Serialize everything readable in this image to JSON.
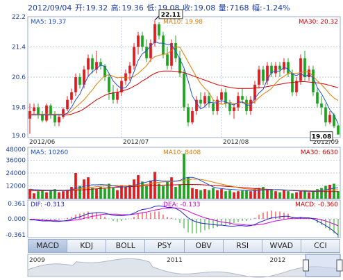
{
  "header": {
    "date": "2012/09/04",
    "open_label": "开:",
    "open": "19.32",
    "high_label": "高:",
    "high": "19.36",
    "low_label": "低:",
    "low": "19.08",
    "close_label": "收:",
    "close": "19.08",
    "volume_label": "量:",
    "volume": "7168",
    "change_label": "幅:",
    "change": "-1.24%"
  },
  "colors": {
    "up": "#e41a1c",
    "down": "#1ea51e",
    "ma5": "#1f4fd1",
    "ma10": "#e07b00",
    "ma30": "#d40000",
    "dif": "#1f1fd1",
    "dea": "#d400d4",
    "axis": "#1a3aa8",
    "grid": "#b9c7e0"
  },
  "tabs": [
    "MACD",
    "KDJ",
    "BOLL",
    "PSY",
    "OBV",
    "RSI",
    "WVAD",
    "CCI"
  ],
  "active_tab": "MACD",
  "overview": {
    "labels": [
      "2009",
      "2011",
      "2012"
    ]
  },
  "chart_data": [
    {
      "type": "candlestick",
      "title": "",
      "ylim": [
        19.0,
        22.2
      ],
      "yticks": [
        "22.2",
        "21.4",
        "20.6",
        "19.8",
        "19.0"
      ],
      "xticks": [
        "2012/06",
        "2012/07",
        "2012/08",
        "2012/09"
      ],
      "legend": {
        "ma5": "MA5: 19.37",
        "ma10": "MA10: 19.98",
        "ma30": "MA30: 20.32"
      },
      "annotations": {
        "max": "22.11",
        "min": "19.08"
      },
      "grid": true,
      "candles": [
        {
          "o": 19.5,
          "h": 19.9,
          "l": 19.1,
          "c": 19.7
        },
        {
          "o": 19.7,
          "h": 19.9,
          "l": 19.6,
          "c": 19.8
        },
        {
          "o": 19.8,
          "h": 19.9,
          "l": 19.5,
          "c": 19.6
        },
        {
          "o": 19.6,
          "h": 19.7,
          "l": 19.4,
          "c": 19.45
        },
        {
          "o": 19.45,
          "h": 19.9,
          "l": 19.4,
          "c": 19.85
        },
        {
          "o": 19.85,
          "h": 19.9,
          "l": 19.5,
          "c": 19.6
        },
        {
          "o": 19.6,
          "h": 19.7,
          "l": 19.3,
          "c": 19.4
        },
        {
          "o": 19.4,
          "h": 19.6,
          "l": 19.3,
          "c": 19.55
        },
        {
          "o": 19.55,
          "h": 19.8,
          "l": 19.5,
          "c": 19.75
        },
        {
          "o": 19.75,
          "h": 20.1,
          "l": 19.7,
          "c": 20.0
        },
        {
          "o": 20.0,
          "h": 20.3,
          "l": 19.9,
          "c": 20.2
        },
        {
          "o": 20.2,
          "h": 20.7,
          "l": 20.1,
          "c": 20.6
        },
        {
          "o": 20.6,
          "h": 20.7,
          "l": 20.3,
          "c": 20.4
        },
        {
          "o": 20.4,
          "h": 20.9,
          "l": 20.3,
          "c": 20.8
        },
        {
          "o": 20.8,
          "h": 21.2,
          "l": 20.6,
          "c": 21.1
        },
        {
          "o": 21.1,
          "h": 21.2,
          "l": 20.7,
          "c": 20.8
        },
        {
          "o": 20.8,
          "h": 21.3,
          "l": 20.7,
          "c": 21.0
        },
        {
          "o": 21.0,
          "h": 21.1,
          "l": 20.8,
          "c": 20.9
        },
        {
          "o": 20.9,
          "h": 20.95,
          "l": 20.5,
          "c": 20.6
        },
        {
          "o": 20.6,
          "h": 20.7,
          "l": 20.0,
          "c": 20.2
        },
        {
          "o": 20.2,
          "h": 20.4,
          "l": 19.9,
          "c": 20.0
        },
        {
          "o": 20.0,
          "h": 20.3,
          "l": 19.9,
          "c": 20.2
        },
        {
          "o": 20.2,
          "h": 20.6,
          "l": 20.1,
          "c": 20.5
        },
        {
          "o": 20.5,
          "h": 20.8,
          "l": 20.4,
          "c": 20.7
        },
        {
          "o": 20.7,
          "h": 21.0,
          "l": 20.5,
          "c": 20.9
        },
        {
          "o": 20.9,
          "h": 21.5,
          "l": 20.8,
          "c": 21.4
        },
        {
          "o": 21.4,
          "h": 21.8,
          "l": 21.2,
          "c": 21.7
        },
        {
          "o": 21.7,
          "h": 21.8,
          "l": 21.3,
          "c": 21.4
        },
        {
          "o": 21.4,
          "h": 21.6,
          "l": 21.0,
          "c": 21.1
        },
        {
          "o": 21.1,
          "h": 21.6,
          "l": 21.0,
          "c": 21.5
        },
        {
          "o": 21.5,
          "h": 22.11,
          "l": 21.4,
          "c": 22.0
        },
        {
          "o": 22.0,
          "h": 22.05,
          "l": 21.6,
          "c": 21.7
        },
        {
          "o": 21.7,
          "h": 21.8,
          "l": 21.1,
          "c": 21.2
        },
        {
          "o": 21.2,
          "h": 21.4,
          "l": 20.8,
          "c": 20.9
        },
        {
          "o": 20.9,
          "h": 21.6,
          "l": 20.8,
          "c": 21.5
        },
        {
          "o": 21.5,
          "h": 21.7,
          "l": 21.0,
          "c": 21.1
        },
        {
          "o": 21.1,
          "h": 21.3,
          "l": 20.6,
          "c": 20.7
        },
        {
          "o": 20.7,
          "h": 20.8,
          "l": 19.7,
          "c": 19.8
        },
        {
          "o": 19.8,
          "h": 19.9,
          "l": 19.3,
          "c": 19.4
        },
        {
          "o": 19.4,
          "h": 19.8,
          "l": 19.35,
          "c": 19.7
        },
        {
          "o": 19.7,
          "h": 20.1,
          "l": 19.6,
          "c": 20.0
        },
        {
          "o": 20.0,
          "h": 20.2,
          "l": 19.8,
          "c": 19.9
        },
        {
          "o": 19.9,
          "h": 20.2,
          "l": 19.8,
          "c": 20.1
        },
        {
          "o": 20.1,
          "h": 20.2,
          "l": 19.8,
          "c": 19.9
        },
        {
          "o": 19.9,
          "h": 20.0,
          "l": 19.6,
          "c": 19.7
        },
        {
          "o": 19.7,
          "h": 20.1,
          "l": 19.6,
          "c": 20.0
        },
        {
          "o": 20.0,
          "h": 20.3,
          "l": 19.9,
          "c": 20.2
        },
        {
          "o": 20.2,
          "h": 20.3,
          "l": 19.8,
          "c": 19.9
        },
        {
          "o": 19.9,
          "h": 20.0,
          "l": 19.6,
          "c": 19.7
        },
        {
          "o": 19.7,
          "h": 19.9,
          "l": 19.5,
          "c": 19.8
        },
        {
          "o": 19.8,
          "h": 20.2,
          "l": 19.7,
          "c": 20.1
        },
        {
          "o": 20.1,
          "h": 20.3,
          "l": 19.9,
          "c": 20.0
        },
        {
          "o": 20.0,
          "h": 20.1,
          "l": 19.6,
          "c": 19.7
        },
        {
          "o": 19.7,
          "h": 20.1,
          "l": 19.6,
          "c": 20.0
        },
        {
          "o": 20.0,
          "h": 20.5,
          "l": 19.9,
          "c": 20.4
        },
        {
          "o": 20.4,
          "h": 20.9,
          "l": 20.3,
          "c": 20.8
        },
        {
          "o": 20.8,
          "h": 20.9,
          "l": 20.4,
          "c": 20.5
        },
        {
          "o": 20.5,
          "h": 21.0,
          "l": 20.4,
          "c": 20.9
        },
        {
          "o": 20.9,
          "h": 21.0,
          "l": 20.6,
          "c": 20.7
        },
        {
          "o": 20.7,
          "h": 21.0,
          "l": 20.6,
          "c": 20.9
        },
        {
          "o": 20.9,
          "h": 21.0,
          "l": 20.6,
          "c": 20.8
        },
        {
          "o": 20.8,
          "h": 21.1,
          "l": 20.7,
          "c": 21.0
        },
        {
          "o": 21.0,
          "h": 21.1,
          "l": 20.6,
          "c": 20.7
        },
        {
          "o": 20.7,
          "h": 20.8,
          "l": 20.1,
          "c": 20.2
        },
        {
          "o": 20.2,
          "h": 20.6,
          "l": 20.1,
          "c": 20.5
        },
        {
          "o": 20.5,
          "h": 21.2,
          "l": 20.4,
          "c": 21.1
        },
        {
          "o": 21.1,
          "h": 21.3,
          "l": 20.5,
          "c": 20.6
        },
        {
          "o": 20.6,
          "h": 20.9,
          "l": 20.5,
          "c": 20.8
        },
        {
          "o": 20.8,
          "h": 20.9,
          "l": 20.1,
          "c": 20.2
        },
        {
          "o": 20.2,
          "h": 20.3,
          "l": 19.8,
          "c": 19.9
        },
        {
          "o": 19.9,
          "h": 20.1,
          "l": 19.6,
          "c": 19.8
        },
        {
          "o": 19.8,
          "h": 19.9,
          "l": 19.3,
          "c": 19.4
        },
        {
          "o": 19.4,
          "h": 19.7,
          "l": 19.35,
          "c": 19.6
        },
        {
          "o": 19.6,
          "h": 19.65,
          "l": 19.25,
          "c": 19.3
        },
        {
          "o": 19.32,
          "h": 19.36,
          "l": 19.08,
          "c": 19.08
        }
      ],
      "ma5": [
        19.6,
        19.6,
        19.6,
        19.6,
        19.6,
        19.6,
        19.6,
        19.6,
        19.6,
        19.65,
        19.8,
        20.0,
        20.15,
        20.4,
        20.62,
        20.74,
        20.82,
        20.92,
        20.88,
        20.7,
        20.5,
        20.38,
        20.3,
        20.32,
        20.46,
        20.74,
        21.04,
        21.22,
        21.3,
        21.42,
        21.54,
        21.5,
        21.5,
        21.46,
        21.46,
        21.28,
        21.08,
        20.84,
        20.5,
        20.1,
        19.92,
        19.76,
        19.82,
        19.94,
        19.92,
        19.92,
        19.98,
        19.94,
        19.9,
        19.86,
        19.94,
        19.94,
        19.86,
        19.86,
        20.04,
        20.18,
        20.28,
        20.54,
        20.72,
        20.76,
        20.76,
        20.86,
        20.82,
        20.68,
        20.64,
        20.7,
        20.62,
        20.66,
        20.6,
        20.32,
        20.16,
        19.96,
        19.74,
        19.6,
        19.37
      ],
      "ma10": [
        19.62,
        19.62,
        19.62,
        19.62,
        19.62,
        19.62,
        19.62,
        19.62,
        19.62,
        19.63,
        19.7,
        19.8,
        19.9,
        20.0,
        20.13,
        20.26,
        20.41,
        20.53,
        20.64,
        20.66,
        20.62,
        20.58,
        20.6,
        20.58,
        20.58,
        20.62,
        20.7,
        20.8,
        20.9,
        21.06,
        21.14,
        21.18,
        21.2,
        21.22,
        21.3,
        21.4,
        21.39,
        21.2,
        21.0,
        20.8,
        20.6,
        20.43,
        20.3,
        20.2,
        20.0,
        19.93,
        19.88,
        19.9,
        19.93,
        19.9,
        19.9,
        19.95,
        19.9,
        19.88,
        19.95,
        20.06,
        20.15,
        20.22,
        20.3,
        20.44,
        20.55,
        20.62,
        20.7,
        20.7,
        20.7,
        20.72,
        20.74,
        20.74,
        20.62,
        20.5,
        20.4,
        20.28,
        20.15,
        20.05,
        19.98
      ],
      "ma30": [
        19.6,
        19.6,
        19.6,
        19.6,
        19.6,
        19.6,
        19.6,
        19.6,
        19.6,
        19.6,
        19.62,
        19.66,
        19.7,
        19.76,
        19.84,
        19.92,
        20.0,
        20.06,
        20.12,
        20.16,
        20.18,
        20.2,
        20.23,
        20.26,
        20.3,
        20.36,
        20.42,
        20.5,
        20.56,
        20.64,
        20.7,
        20.74,
        20.76,
        20.76,
        20.76,
        20.75,
        20.74,
        20.72,
        20.68,
        20.64,
        20.6,
        20.56,
        20.52,
        20.48,
        20.44,
        20.4,
        20.38,
        20.35,
        20.33,
        20.31,
        20.3,
        20.3,
        20.3,
        20.3,
        20.31,
        20.32,
        20.33,
        20.35,
        20.37,
        20.39,
        20.41,
        20.43,
        20.45,
        20.46,
        20.47,
        20.48,
        20.48,
        20.47,
        20.46,
        20.45,
        20.43,
        20.41,
        20.38,
        20.35,
        20.32
      ]
    },
    {
      "type": "bar",
      "ylim": [
        0,
        48000
      ],
      "yticks": [
        "48000",
        "36000",
        "24000",
        "12000"
      ],
      "legend": {
        "ma5": "MA5: 10260",
        "ma10": "MA10: 8408",
        "ma30": "MA30: 6630"
      },
      "volume": [
        9000,
        5000,
        7000,
        8000,
        6000,
        8000,
        9000,
        6000,
        7000,
        8500,
        11000,
        24000,
        12000,
        18000,
        20000,
        10000,
        9000,
        11000,
        9500,
        14000,
        10000,
        8000,
        12000,
        11000,
        13000,
        18000,
        22000,
        16000,
        12000,
        17000,
        25000,
        14000,
        12000,
        16000,
        20000,
        11000,
        13000,
        42000,
        20000,
        10000,
        9000,
        8000,
        9000,
        8000,
        10000,
        8000,
        9000,
        7000,
        8000,
        6000,
        7000,
        7500,
        8000,
        7000,
        9000,
        10000,
        11000,
        8000,
        9000,
        7000,
        6000,
        8000,
        7000,
        5000,
        6000,
        7000,
        8000,
        6000,
        7000,
        9000,
        10000,
        12000,
        13000,
        14000,
        7168
      ],
      "vma": [
        9000,
        8500,
        8300,
        8000,
        7800,
        7900,
        7800,
        7700,
        7800,
        8000,
        8500,
        9500,
        10500,
        11500,
        12500,
        13000,
        13000,
        13200,
        13000,
        12800,
        12000,
        11500,
        11000,
        11200,
        11500,
        12500,
        13500,
        14500,
        15500,
        16500,
        17500,
        17000,
        16500,
        16500,
        16500,
        16500,
        17000,
        19000,
        20000,
        20000,
        19000,
        17000,
        15000,
        13000,
        11000,
        10000,
        9500,
        9000,
        8800,
        8500,
        8200,
        8000,
        7800,
        7600,
        7600,
        7800,
        8000,
        8200,
        8400,
        8500,
        8500,
        8300,
        8000,
        7800,
        7500,
        7300,
        7200,
        7100,
        7000,
        7200,
        7600,
        8200,
        9000,
        9800,
        10260
      ],
      "vma10": [
        8500,
        8400,
        8300,
        8200,
        8100,
        8000,
        7900,
        7900,
        7900,
        8000,
        8200,
        8700,
        9200,
        9800,
        10300,
        10800,
        11200,
        11600,
        11800,
        12000,
        12200,
        12400,
        12400,
        12400,
        12300,
        12300,
        12500,
        12800,
        13300,
        14000,
        14800,
        15300,
        15600,
        15800,
        16000,
        16300,
        16600,
        17200,
        17800,
        18200,
        18200,
        18000,
        17400,
        16500,
        15500,
        14500,
        13600,
        12800,
        12000,
        11200,
        10400,
        9700,
        9200,
        8800,
        8500,
        8300,
        8200,
        8200,
        8200,
        8200,
        8200,
        8100,
        8000,
        7900,
        7800,
        7700,
        7600,
        7500,
        7400,
        7400,
        7500,
        7700,
        7900,
        8150,
        8408
      ],
      "vma30": [
        7500,
        7500,
        7500,
        7500,
        7500,
        7500,
        7500,
        7500,
        7500,
        7600,
        7700,
        7900,
        8100,
        8400,
        8700,
        9000,
        9300,
        9600,
        9900,
        10200,
        10500,
        10700,
        10900,
        11100,
        11300,
        11500,
        11700,
        11900,
        12100,
        12300,
        12500,
        12600,
        12700,
        12800,
        12900,
        13000,
        13100,
        13200,
        13300,
        13300,
        13200,
        13100,
        12900,
        12700,
        12500,
        12200,
        11900,
        11600,
        11300,
        11000,
        10700,
        10400,
        10100,
        9800,
        9500,
        9200,
        9000,
        8800,
        8600,
        8400,
        8200,
        8000,
        7800,
        7600,
        7400,
        7200,
        7000,
        6900,
        6800,
        6750,
        6700,
        6680,
        6660,
        6640,
        6630
      ]
    },
    {
      "type": "bar",
      "ylim": [
        -0.361,
        0.361
      ],
      "yticks": [
        "0.361",
        "0.000",
        "-0.361"
      ],
      "legend": {
        "dif": "DIF: -0.313",
        "dea": "DEA: -0.133",
        "macd": "MACD: -0.360"
      },
      "dif": [
        -0.02,
        -0.02,
        -0.03,
        -0.04,
        -0.04,
        -0.04,
        -0.05,
        -0.05,
        -0.04,
        -0.03,
        -0.01,
        0.02,
        0.04,
        0.07,
        0.1,
        0.11,
        0.12,
        0.12,
        0.11,
        0.09,
        0.07,
        0.06,
        0.06,
        0.07,
        0.08,
        0.11,
        0.15,
        0.18,
        0.19,
        0.21,
        0.24,
        0.25,
        0.24,
        0.22,
        0.22,
        0.2,
        0.16,
        0.09,
        0.02,
        -0.03,
        -0.06,
        -0.08,
        -0.09,
        -0.1,
        -0.11,
        -0.12,
        -0.12,
        -0.13,
        -0.14,
        -0.14,
        -0.13,
        -0.13,
        -0.14,
        -0.13,
        -0.11,
        -0.07,
        -0.04,
        -0.01,
        0.02,
        0.03,
        0.04,
        0.05,
        0.05,
        0.03,
        0.02,
        0.03,
        0.02,
        0.02,
        0.0,
        -0.04,
        -0.08,
        -0.13,
        -0.18,
        -0.24,
        -0.313
      ],
      "dea": [
        -0.01,
        -0.01,
        -0.02,
        -0.02,
        -0.03,
        -0.03,
        -0.03,
        -0.04,
        -0.04,
        -0.04,
        -0.03,
        -0.02,
        -0.01,
        0.01,
        0.03,
        0.05,
        0.06,
        0.08,
        0.09,
        0.09,
        0.09,
        0.09,
        0.08,
        0.08,
        0.08,
        0.09,
        0.1,
        0.12,
        0.13,
        0.15,
        0.17,
        0.18,
        0.2,
        0.2,
        0.21,
        0.21,
        0.2,
        0.18,
        0.15,
        0.11,
        0.08,
        0.05,
        0.02,
        0.0,
        -0.02,
        -0.04,
        -0.06,
        -0.07,
        -0.08,
        -0.1,
        -0.1,
        -0.11,
        -0.12,
        -0.12,
        -0.12,
        -0.11,
        -0.1,
        -0.08,
        -0.06,
        -0.04,
        -0.03,
        -0.01,
        0.0,
        0.01,
        0.01,
        0.01,
        0.01,
        0.01,
        0.01,
        0.0,
        -0.02,
        -0.04,
        -0.07,
        -0.1,
        -0.133
      ]
    }
  ]
}
